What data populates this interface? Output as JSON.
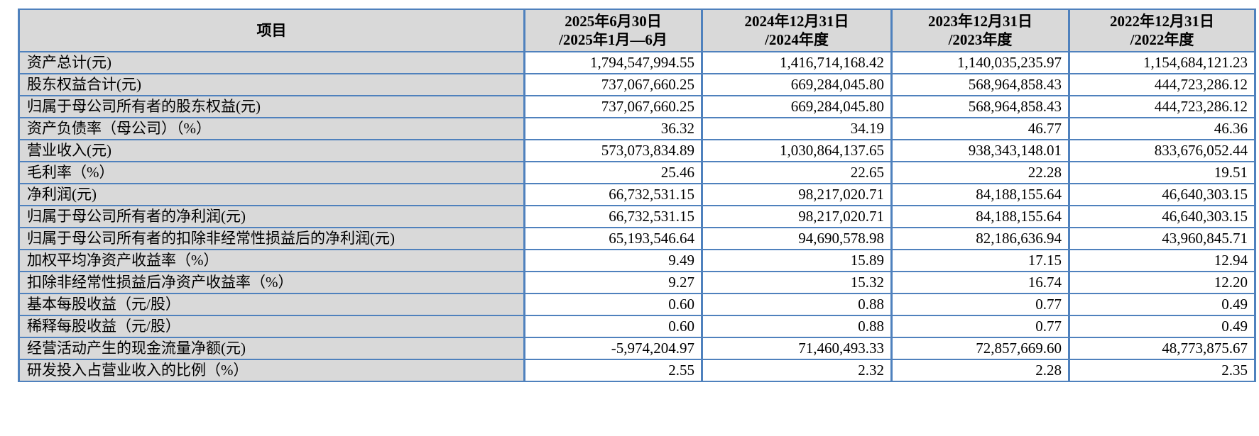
{
  "colors": {
    "border": "#4f81bd",
    "header_bg": "#d9d9d9",
    "cell_bg": "#ffffff",
    "text": "#000000"
  },
  "table": {
    "item_header": "项目",
    "column_headers": [
      {
        "line1": "2025年6月30日",
        "line2": "/2025年1月—6月"
      },
      {
        "line1": "2024年12月31日",
        "line2": "/2024年度"
      },
      {
        "line1": "2023年12月31日",
        "line2": "/2023年度"
      },
      {
        "line1": "2022年12月31日",
        "line2": "/2022年度"
      }
    ],
    "rows": [
      {
        "label": "资产总计(元)",
        "values": [
          "1,794,547,994.55",
          "1,416,714,168.42",
          "1,140,035,235.97",
          "1,154,684,121.23"
        ]
      },
      {
        "label": "股东权益合计(元)",
        "values": [
          "737,067,660.25",
          "669,284,045.80",
          "568,964,858.43",
          "444,723,286.12"
        ]
      },
      {
        "label": "归属于母公司所有者的股东权益(元)",
        "values": [
          "737,067,660.25",
          "669,284,045.80",
          "568,964,858.43",
          "444,723,286.12"
        ]
      },
      {
        "label": "资产负债率（母公司）（%）",
        "values": [
          "36.32",
          "34.19",
          "46.77",
          "46.36"
        ]
      },
      {
        "label": "营业收入(元)",
        "values": [
          "573,073,834.89",
          "1,030,864,137.65",
          "938,343,148.01",
          "833,676,052.44"
        ]
      },
      {
        "label": "毛利率（%）",
        "values": [
          "25.46",
          "22.65",
          "22.28",
          "19.51"
        ]
      },
      {
        "label": "净利润(元)",
        "values": [
          "66,732,531.15",
          "98,217,020.71",
          "84,188,155.64",
          "46,640,303.15"
        ]
      },
      {
        "label": "归属于母公司所有者的净利润(元)",
        "values": [
          "66,732,531.15",
          "98,217,020.71",
          "84,188,155.64",
          "46,640,303.15"
        ]
      },
      {
        "label": "归属于母公司所有者的扣除非经常性损益后的净利润(元)",
        "values": [
          "65,193,546.64",
          "94,690,578.98",
          "82,186,636.94",
          "43,960,845.71"
        ]
      },
      {
        "label": "加权平均净资产收益率（%）",
        "values": [
          "9.49",
          "15.89",
          "17.15",
          "12.94"
        ]
      },
      {
        "label": "扣除非经常性损益后净资产收益率（%）",
        "values": [
          "9.27",
          "15.32",
          "16.74",
          "12.20"
        ]
      },
      {
        "label": "基本每股收益（元/股）",
        "values": [
          "0.60",
          "0.88",
          "0.77",
          "0.49"
        ]
      },
      {
        "label": "稀释每股收益（元/股）",
        "values": [
          "0.60",
          "0.88",
          "0.77",
          "0.49"
        ]
      },
      {
        "label": "经营活动产生的现金流量净额(元)",
        "values": [
          "-5,974,204.97",
          "71,460,493.33",
          "72,857,669.60",
          "48,773,875.67"
        ]
      },
      {
        "label": "研发投入占营业收入的比例（%）",
        "values": [
          "2.55",
          "2.32",
          "2.28",
          "2.35"
        ]
      }
    ]
  }
}
